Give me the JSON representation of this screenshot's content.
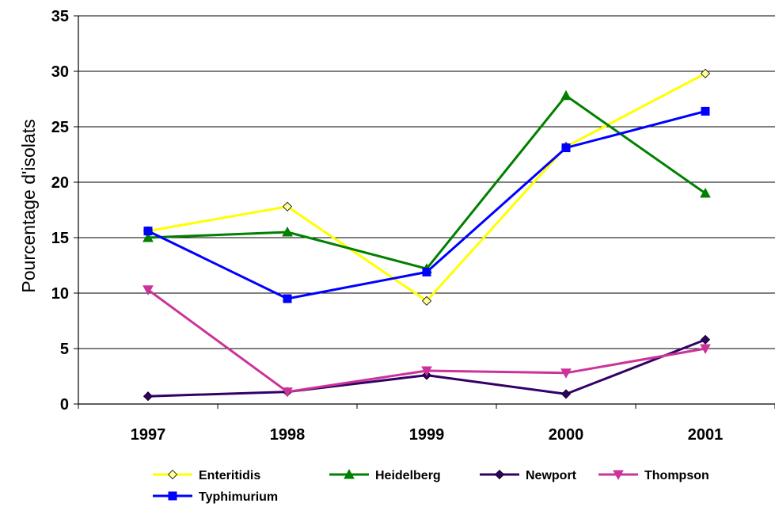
{
  "chart_data": {
    "type": "line",
    "title": "",
    "xlabel": "",
    "ylabel": "Pourcentage d'isolats",
    "categories": [
      "1997",
      "1998",
      "1999",
      "2000",
      "2001"
    ],
    "ylim": [
      0,
      35
    ],
    "yticks": [
      "0",
      "5",
      "10",
      "15",
      "20",
      "25",
      "30",
      "35"
    ],
    "grid": "horizontal",
    "legend_position": "bottom",
    "series": [
      {
        "name": "Enteritidis",
        "values": [
          15.6,
          17.8,
          9.3,
          23.2,
          29.8
        ],
        "color": "#ffff00",
        "marker": "diamond",
        "marker_fill": "#ffff99"
      },
      {
        "name": "Heidelberg",
        "values": [
          15.0,
          15.5,
          12.2,
          27.8,
          19.0
        ],
        "color": "#008000",
        "marker": "triangle-up",
        "marker_fill": "#008000"
      },
      {
        "name": "Newport",
        "values": [
          0.7,
          1.1,
          2.6,
          0.9,
          5.8
        ],
        "color": "#330066",
        "marker": "diamond",
        "marker_fill": "#330066"
      },
      {
        "name": "Thompson",
        "values": [
          10.3,
          1.1,
          3.0,
          2.8,
          5.0
        ],
        "color": "#cc3399",
        "marker": "triangle-down",
        "marker_fill": "#cc3399"
      },
      {
        "name": "Typhimurium",
        "values": [
          15.6,
          9.5,
          11.9,
          23.1,
          26.4
        ],
        "color": "#0000ff",
        "marker": "square",
        "marker_fill": "#0000ff"
      }
    ]
  }
}
